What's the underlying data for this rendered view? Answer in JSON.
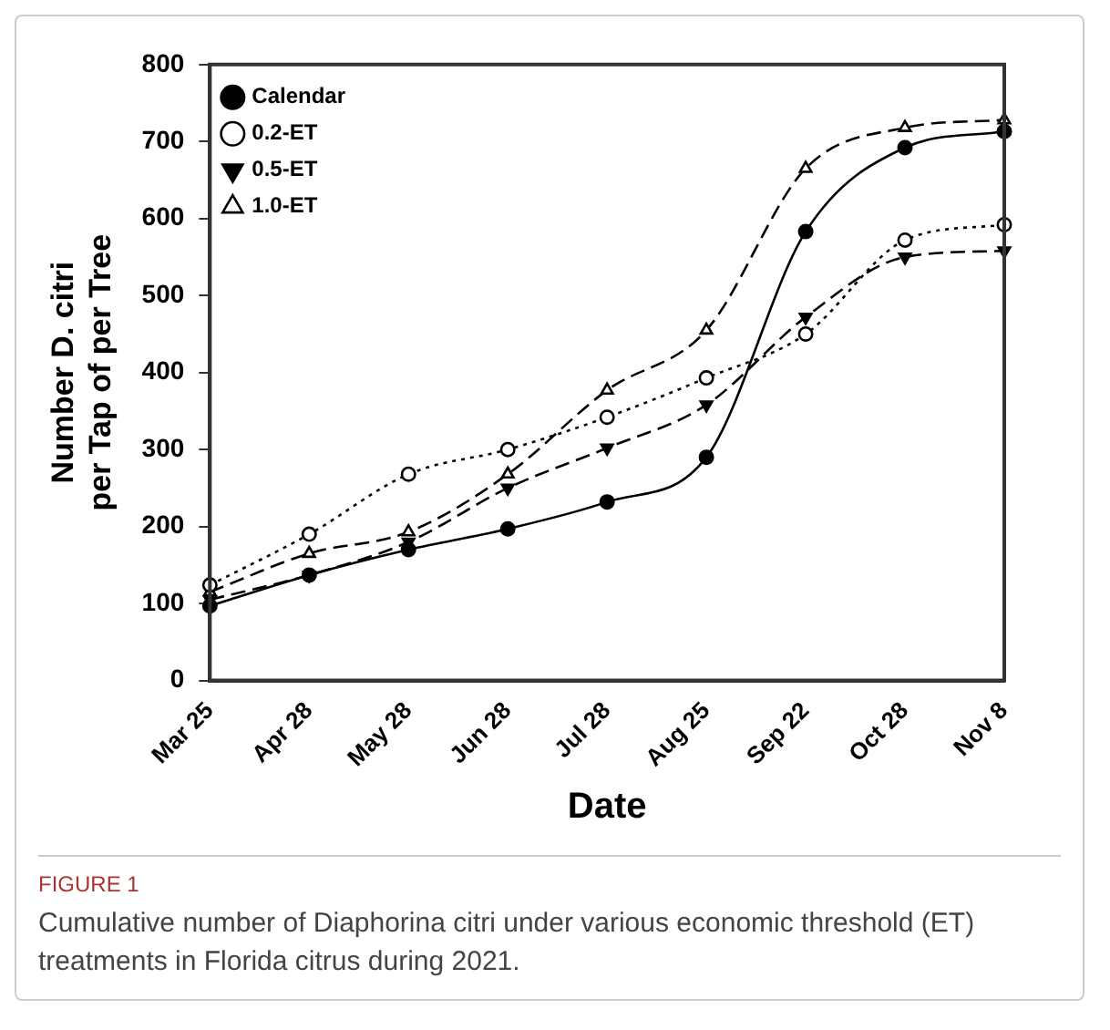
{
  "chart_data": {
    "type": "line",
    "xlabel": "Date",
    "ylabel": "Number D. citri\nper Tap of per Tree",
    "categories": [
      "Mar 25",
      "Apr 28",
      "May 28",
      "Jun 28",
      "Jul 28",
      "Aug 25",
      "Sep 22",
      "Oct 28",
      "Nov 8"
    ],
    "series": [
      {
        "name": "Calendar",
        "color": "#000000",
        "marker": "circle",
        "line_style": "solid",
        "values": [
          97,
          137,
          170,
          197,
          232,
          290,
          583,
          692,
          713
        ]
      },
      {
        "name": "0.2-ET",
        "color": "#000000",
        "marker": "circle",
        "line_style": "dotted",
        "values": [
          124,
          190,
          268,
          300,
          342,
          393,
          450,
          572,
          592
        ]
      },
      {
        "name": "0.5-ET",
        "color": "#000000",
        "marker": "triangle",
        "line_style": "dashed",
        "values": [
          105,
          137,
          180,
          250,
          302,
          358,
          472,
          550,
          558
        ]
      },
      {
        "name": "1.0-ET",
        "color": "#000000",
        "marker": "triangle",
        "line_style": "dashed",
        "values": [
          115,
          165,
          193,
          268,
          377,
          455,
          665,
          718,
          728
        ]
      }
    ],
    "ylim": [
      0,
      800
    ],
    "yticks": [
      0,
      100,
      200,
      300,
      400,
      500,
      600,
      700,
      800
    ],
    "grid": false,
    "legend": "top left",
    "annotations": [
      "FIGURE 1",
      "Cumulative number of Diaphorina citri under various economic threshold (ET) treatments in Florida citrus during 2021."
    ]
  }
}
